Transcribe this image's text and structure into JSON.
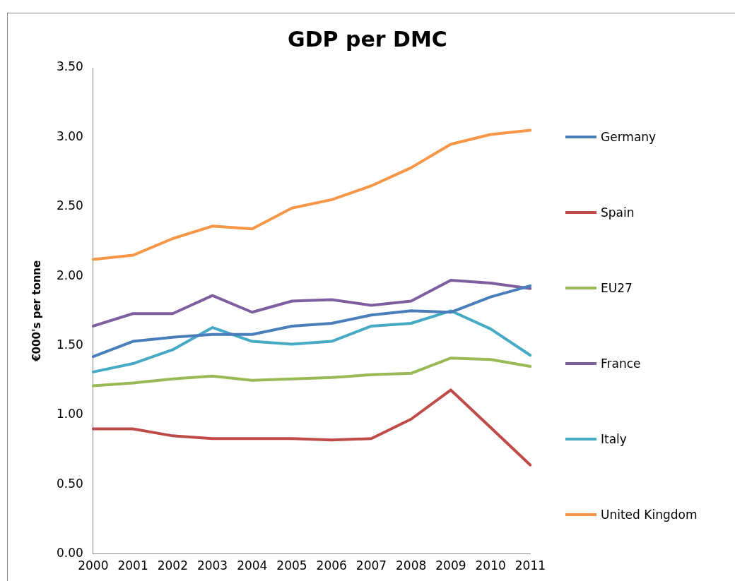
{
  "chart_data": {
    "type": "line",
    "title": "GDP per DMC",
    "ylabel": "€000's per tonne",
    "categories": [
      "2000",
      "2001",
      "2002",
      "2003",
      "2004",
      "2005",
      "2006",
      "2007",
      "2008",
      "2009",
      "2010",
      "2011"
    ],
    "series": [
      {
        "name": "Germany",
        "color": "#4a7ebb",
        "values": [
          1.42,
          1.53,
          1.56,
          1.58,
          1.58,
          1.64,
          1.66,
          1.72,
          1.75,
          1.74,
          1.85,
          1.93
        ]
      },
      {
        "name": "Spain",
        "color": "#be4b48",
        "values": [
          0.9,
          0.9,
          0.85,
          0.83,
          0.83,
          0.83,
          0.82,
          0.83,
          0.97,
          1.18,
          0.91,
          0.64
        ]
      },
      {
        "name": "EU27",
        "color": "#98b954",
        "values": [
          1.21,
          1.23,
          1.26,
          1.28,
          1.25,
          1.26,
          1.27,
          1.29,
          1.3,
          1.41,
          1.4,
          1.35
        ]
      },
      {
        "name": "France",
        "color": "#7d5fa0",
        "values": [
          1.64,
          1.73,
          1.73,
          1.86,
          1.74,
          1.82,
          1.83,
          1.79,
          1.82,
          1.97,
          1.95,
          1.91
        ]
      },
      {
        "name": "Italy",
        "color": "#46aac5",
        "values": [
          1.31,
          1.37,
          1.47,
          1.63,
          1.53,
          1.51,
          1.53,
          1.64,
          1.66,
          1.75,
          1.62,
          1.43
        ]
      },
      {
        "name": "United Kingdom",
        "color": "#f79646",
        "values": [
          2.12,
          2.15,
          2.27,
          2.36,
          2.34,
          2.49,
          2.55,
          2.65,
          2.78,
          2.95,
          3.02,
          3.05
        ]
      }
    ],
    "ylim": [
      0,
      3.5
    ],
    "yticks": [
      {
        "value": 0,
        "label": "0.00"
      },
      {
        "value": 0.5,
        "label": "0.50"
      },
      {
        "value": 1,
        "label": "1.00"
      },
      {
        "value": 1.5,
        "label": "1.50"
      },
      {
        "value": 2,
        "label": "2.00"
      },
      {
        "value": 2.5,
        "label": "2.50"
      },
      {
        "value": 3,
        "label": "3.00"
      },
      {
        "value": 3.5,
        "label": "3.50"
      }
    ],
    "grid": false,
    "legend": "right",
    "marker": "none",
    "line_style": "solid"
  }
}
